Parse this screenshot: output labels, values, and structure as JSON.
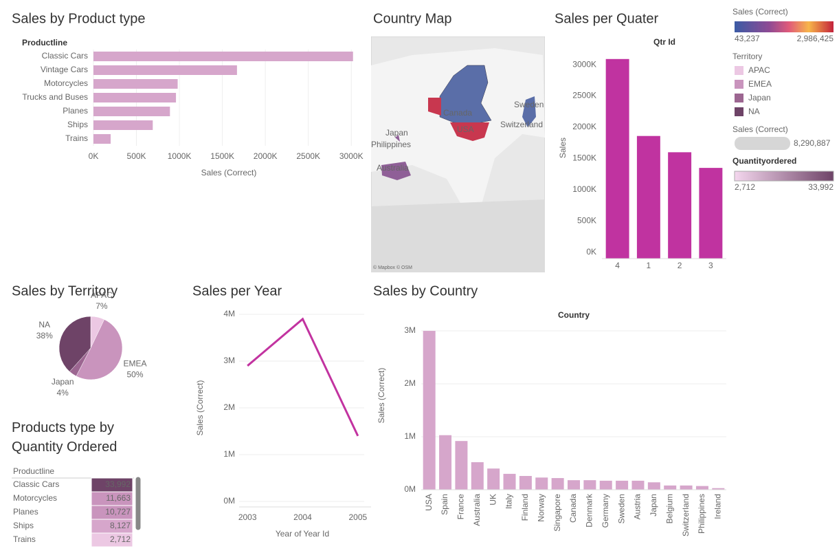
{
  "chart_data": [
    {
      "type": "bar",
      "orientation": "horizontal",
      "title": "Sales by Product type",
      "category_label": "Productline",
      "xlabel": "Sales (Correct)",
      "categories": [
        "Classic Cars",
        "Vintage Cars",
        "Motorcycles",
        "Trucks and Buses",
        "Planes",
        "Ships",
        "Trains"
      ],
      "values": [
        3020000,
        1670000,
        980000,
        960000,
        890000,
        690000,
        200000
      ],
      "color": "#d6a6cb",
      "xlim": [
        0,
        3150000
      ],
      "xticks": [
        {
          "value": 0,
          "label": "0K"
        },
        {
          "value": 500000,
          "label": "500K"
        },
        {
          "value": 1000000,
          "label": "1000K"
        },
        {
          "value": 1500000,
          "label": "1500K"
        },
        {
          "value": 2000000,
          "label": "2000K"
        },
        {
          "value": 2500000,
          "label": "2500K"
        },
        {
          "value": 3000000,
          "label": "3000K"
        }
      ],
      "grid": true
    },
    {
      "type": "bar",
      "title": "Sales per Quater",
      "header": "Qtr Id",
      "ylabel": "Sales",
      "categories": [
        "4",
        "1",
        "2",
        "3"
      ],
      "values": [
        3190000,
        1960000,
        1700000,
        1450000
      ],
      "color": "#c033a0",
      "ylim": [
        0,
        3300000
      ],
      "yticks": [
        {
          "value": 0,
          "label": "0K"
        },
        {
          "value": 500000,
          "label": "500K"
        },
        {
          "value": 1000000,
          "label": "1000K"
        },
        {
          "value": 1500000,
          "label": "1500K"
        },
        {
          "value": 2000000,
          "label": "2000K"
        },
        {
          "value": 2500000,
          "label": "2500K"
        },
        {
          "value": 3000000,
          "label": "3000K"
        }
      ],
      "grid": false
    },
    {
      "type": "pie",
      "title": "Sales by Territory",
      "categories": [
        "APAC",
        "EMEA",
        "Japan",
        "NA"
      ],
      "values": [
        7,
        50,
        4,
        38
      ],
      "value_labels": [
        "7%",
        "50%",
        "4%",
        "38%"
      ],
      "colors": [
        "#ecc8e3",
        "#c994bd",
        "#9c6691",
        "#6e4367"
      ]
    },
    {
      "type": "line",
      "title": "Sales per Year",
      "xlabel": "Year of Year Id",
      "ylabel": "Sales (Correct)",
      "categories": [
        "2003",
        "2004",
        "2005"
      ],
      "values": [
        2900000,
        3900000,
        1400000
      ],
      "color": "#c233a0",
      "ylim": [
        0,
        4000000
      ],
      "yticks": [
        {
          "value": 0,
          "label": "0M"
        },
        {
          "value": 1000000,
          "label": "1M"
        },
        {
          "value": 2000000,
          "label": "2M"
        },
        {
          "value": 3000000,
          "label": "3M"
        },
        {
          "value": 4000000,
          "label": "4M"
        }
      ],
      "grid": true
    },
    {
      "type": "bar",
      "title": "Sales by Country",
      "header": "Country",
      "ylabel": "Sales (Correct)",
      "categories": [
        "USA",
        "Spain",
        "France",
        "Australia",
        "UK",
        "Italy",
        "Finland",
        "Norway",
        "Singapore",
        "Canada",
        "Denmark",
        "Germany",
        "Sweden",
        "Austria",
        "Japan",
        "Belgium",
        "Switzerland",
        "Philippines",
        "Ireland"
      ],
      "values": [
        3000000,
        1030000,
        920000,
        520000,
        400000,
        300000,
        260000,
        230000,
        220000,
        180000,
        180000,
        170000,
        170000,
        170000,
        140000,
        80000,
        80000,
        70000,
        30000
      ],
      "color": "#d6a6cb",
      "ylim": [
        0,
        3150000
      ],
      "yticks": [
        {
          "value": 0,
          "label": "0M"
        },
        {
          "value": 1000000,
          "label": "1M"
        },
        {
          "value": 2000000,
          "label": "2M"
        },
        {
          "value": 3000000,
          "label": "3M"
        }
      ],
      "grid": true
    }
  ],
  "map": {
    "title": "Country Map",
    "labels": [
      "Canada",
      "USA",
      "Japan",
      "Philippines",
      "Australia",
      "Sweden",
      "Switzerland"
    ],
    "attribution": "© Mapbox © OSM"
  },
  "legends": {
    "sales_color": {
      "title": "Sales (Correct)",
      "min": "43,237",
      "max": "2,986,425"
    },
    "territory": {
      "title": "Territory"
    },
    "sales_size": {
      "title": "Sales (Correct)",
      "max": "8,290,887"
    },
    "quantity": {
      "title": "Quantityordered",
      "min": "2,712",
      "max": "33,992"
    }
  },
  "table": {
    "title": "Products type by Quantity Ordered",
    "header": "Productline",
    "rows": [
      [
        "Classic Cars",
        "33,992"
      ],
      [
        "Motorcycles",
        "11,663"
      ],
      [
        "Planes",
        "10,727"
      ],
      [
        "Ships",
        "8,127"
      ],
      [
        "Trains",
        "2,712"
      ]
    ],
    "shades": [
      "#6e4367",
      "#c994bd",
      "#c994bd",
      "#d6a6cb",
      "#ecc8e3"
    ]
  }
}
